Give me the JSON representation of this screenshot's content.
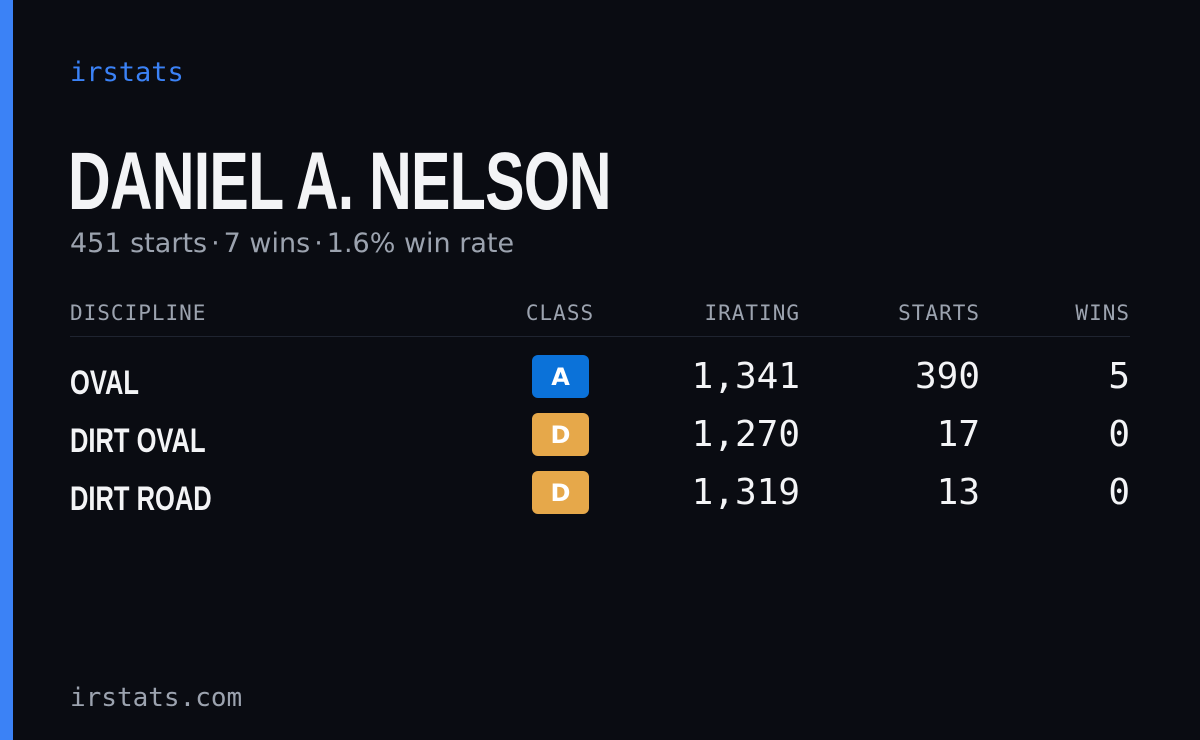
{
  "brand": "irstats",
  "driver": {
    "name": "DANIEL A. NELSON",
    "starts_text": "451 starts",
    "wins_text": "7 wins",
    "winrate_text": "1.6% win rate",
    "separator": "·"
  },
  "table": {
    "headers": {
      "discipline": "DISCIPLINE",
      "class": "CLASS",
      "irating": "IRATING",
      "starts": "STARTS",
      "wins": "WINS"
    },
    "rows": [
      {
        "discipline": "OVAL",
        "class": "A",
        "class_color": "#0b72d9",
        "irating": "1,341",
        "starts": "390",
        "wins": "5"
      },
      {
        "discipline": "DIRT OVAL",
        "class": "D",
        "class_color": "#e6a84a",
        "irating": "1,270",
        "starts": "17",
        "wins": "0"
      },
      {
        "discipline": "DIRT ROAD",
        "class": "D",
        "class_color": "#e6a84a",
        "irating": "1,319",
        "starts": "13",
        "wins": "0"
      }
    ]
  },
  "footer": "irstats.com",
  "colors": {
    "background": "#0a0c12",
    "accent": "#3b82f6",
    "text_primary": "#f3f4f6",
    "text_muted": "#9ca3af"
  }
}
